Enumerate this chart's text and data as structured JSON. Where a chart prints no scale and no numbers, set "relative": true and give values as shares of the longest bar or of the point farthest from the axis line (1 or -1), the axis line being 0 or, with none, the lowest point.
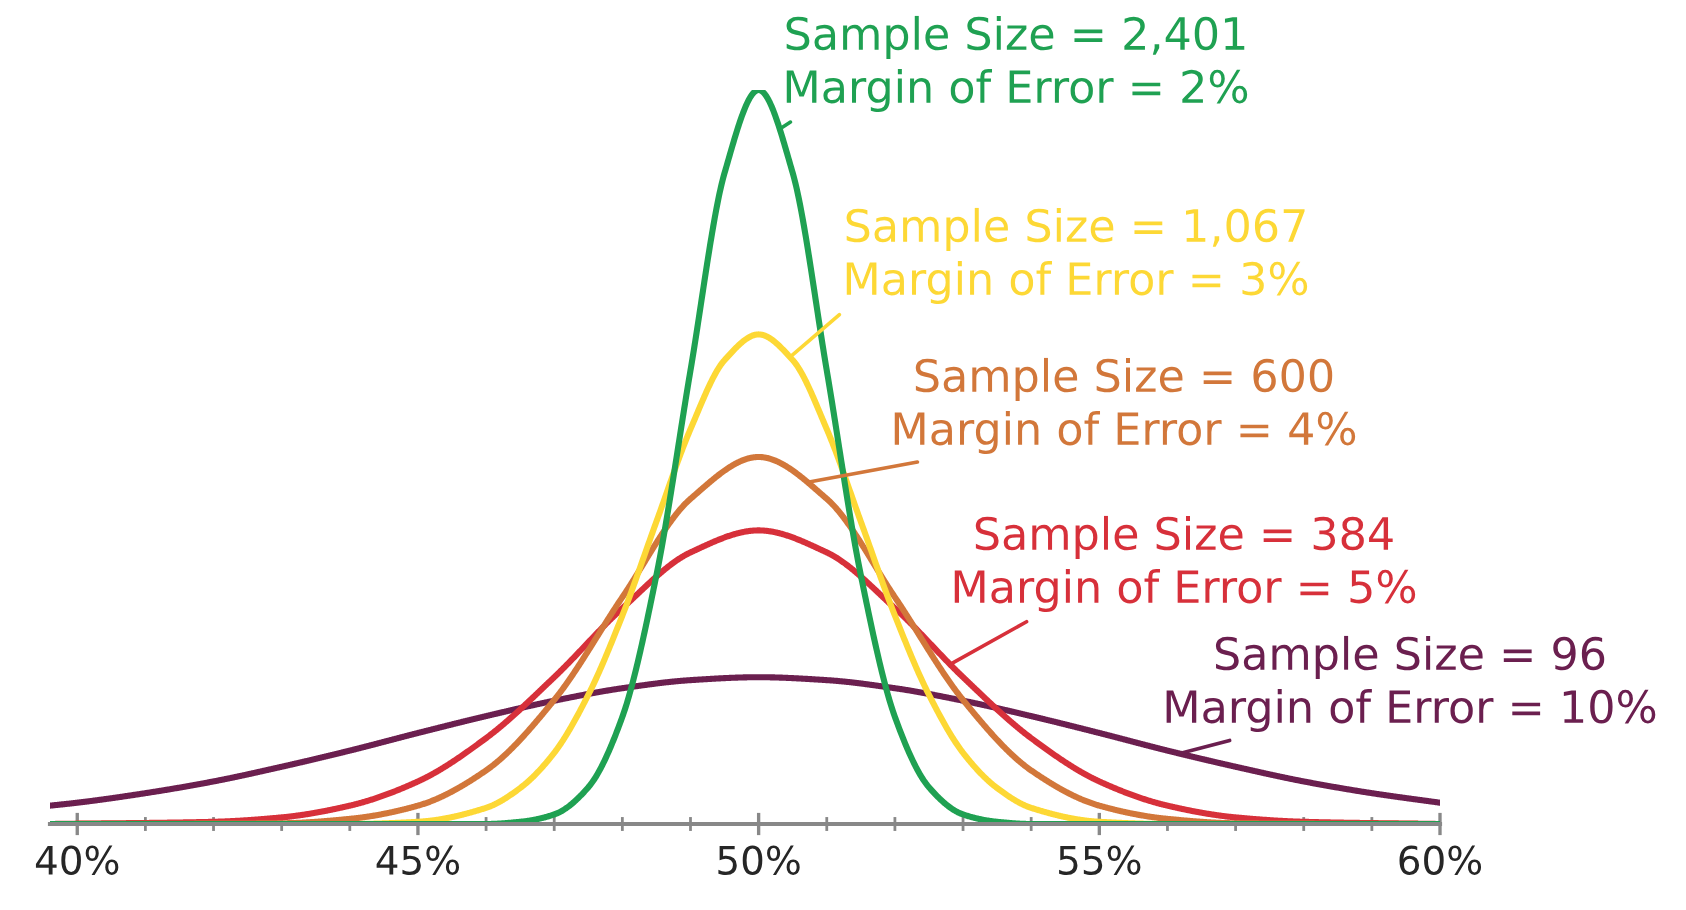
{
  "chart_data": {
    "type": "line",
    "relative": true,
    "xlim": [
      39.6,
      60
    ],
    "xticks": [
      {
        "value": 40,
        "label": "40%"
      },
      {
        "value": 41,
        "label": null
      },
      {
        "value": 42,
        "label": null
      },
      {
        "value": 43,
        "label": null
      },
      {
        "value": 44,
        "label": null
      },
      {
        "value": 45,
        "label": "45%"
      },
      {
        "value": 46,
        "label": null
      },
      {
        "value": 47,
        "label": null
      },
      {
        "value": 48,
        "label": null
      },
      {
        "value": 49,
        "label": null
      },
      {
        "value": 50,
        "label": "50%"
      },
      {
        "value": 51,
        "label": null
      },
      {
        "value": 52,
        "label": null
      },
      {
        "value": 53,
        "label": null
      },
      {
        "value": 54,
        "label": null
      },
      {
        "value": 55,
        "label": "55%"
      },
      {
        "value": 56,
        "label": null
      },
      {
        "value": 57,
        "label": null
      },
      {
        "value": 58,
        "label": null
      },
      {
        "value": 59,
        "label": null
      },
      {
        "value": 60,
        "label": "60%"
      }
    ],
    "grid": false,
    "legend": false,
    "marker": "none",
    "line_style": "solid",
    "series": [
      {
        "name": "Sample Size = 96\nMargin of Error = 10%",
        "color": "#6b1f4f",
        "x": [
          39.6,
          40,
          41,
          42,
          43,
          44,
          45,
          46,
          47,
          48,
          49,
          50,
          51,
          52,
          53,
          54,
          55,
          56,
          57,
          58,
          59,
          60
        ],
        "values": [
          0.025,
          0.029,
          0.042,
          0.058,
          0.078,
          0.1,
          0.124,
          0.147,
          0.168,
          0.185,
          0.196,
          0.2,
          0.196,
          0.185,
          0.168,
          0.147,
          0.124,
          0.1,
          0.078,
          0.058,
          0.042,
          0.029
        ]
      },
      {
        "name": "Sample Size = 384\nMargin of Error = 5%",
        "color": "#d7303a",
        "x": [
          39.6,
          42,
          43,
          44,
          45,
          46,
          47,
          48,
          49,
          50,
          51,
          52,
          53,
          54,
          55,
          56,
          57,
          58,
          60
        ],
        "values": [
          0,
          0.003,
          0.009,
          0.025,
          0.058,
          0.117,
          0.2,
          0.294,
          0.37,
          0.4,
          0.37,
          0.294,
          0.2,
          0.117,
          0.058,
          0.025,
          0.009,
          0.003,
          0
        ]
      },
      {
        "name": "Sample Size = 600\nMargin of Error = 4%",
        "color": "#d2773a",
        "x": [
          39.6,
          43,
          44,
          45,
          46,
          47,
          48,
          49,
          50,
          51,
          52,
          53,
          54,
          55,
          56,
          57,
          60
        ],
        "values": [
          0,
          0.001,
          0.007,
          0.025,
          0.073,
          0.169,
          0.309,
          0.443,
          0.5,
          0.443,
          0.309,
          0.169,
          0.073,
          0.025,
          0.007,
          0.001,
          0
        ]
      },
      {
        "name": "Sample Size = 1,067\nMargin of Error = 3%",
        "color": "#fdd835",
        "x": [
          39.6,
          44,
          45,
          46,
          46.5,
          47,
          47.5,
          48,
          48.5,
          49,
          49.5,
          50,
          50.5,
          51,
          51.5,
          52,
          52.5,
          53,
          53.5,
          54,
          55,
          56,
          60
        ],
        "values": [
          0,
          0,
          0.003,
          0.022,
          0.049,
          0.097,
          0.176,
          0.284,
          0.412,
          0.538,
          0.632,
          0.667,
          0.632,
          0.538,
          0.412,
          0.284,
          0.176,
          0.097,
          0.049,
          0.022,
          0.003,
          0,
          0
        ]
      },
      {
        "name": "Sample Size = 2,401\nMargin of Error = 2%",
        "color": "#1fa152",
        "x": [
          39.6,
          46,
          46.5,
          47,
          47.5,
          48,
          48.5,
          49,
          49.5,
          50,
          50.5,
          51,
          51.5,
          52,
          52.5,
          53,
          53.5,
          54,
          60
        ],
        "values": [
          0,
          0,
          0.003,
          0.013,
          0.05,
          0.146,
          0.339,
          0.618,
          0.887,
          1,
          0.887,
          0.618,
          0.339,
          0.146,
          0.05,
          0.013,
          0.003,
          0,
          0
        ]
      }
    ]
  }
}
